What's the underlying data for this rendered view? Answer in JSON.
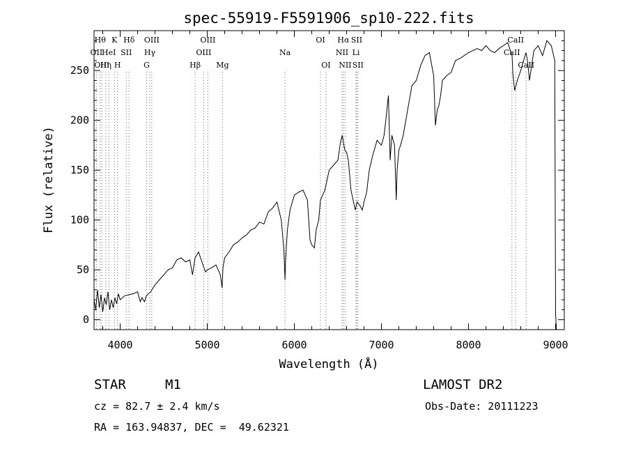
{
  "chart_data": {
    "type": "line",
    "title": "spec-55919-F5591906_sp10-222.fits",
    "xlabel": "Wavelength (Å)",
    "ylabel": "Flux (relative)",
    "xlim": [
      3700,
      9100
    ],
    "ylim": [
      -10,
      290
    ],
    "xticks": [
      4000,
      5000,
      6000,
      7000,
      8000,
      9000
    ],
    "yticks": [
      0,
      50,
      100,
      150,
      200,
      250
    ],
    "series": [
      {
        "x": [
          3700,
          3720,
          3740,
          3760,
          3780,
          3800,
          3820,
          3840,
          3860,
          3880,
          3900,
          3920,
          3940,
          3960,
          3980,
          4000,
          4050,
          4100,
          4150,
          4200,
          4230,
          4250,
          4280,
          4300,
          4350,
          4400,
          4450,
          4500,
          4550,
          4600,
          4650,
          4700,
          4750,
          4800,
          4830,
          4860,
          4900,
          4950,
          4980,
          5000,
          5050,
          5100,
          5150,
          5170,
          5180,
          5200,
          5250,
          5300,
          5350,
          5400,
          5450,
          5500,
          5550,
          5600,
          5650,
          5700,
          5750,
          5800,
          5850,
          5880,
          5893,
          5900,
          5920,
          5950,
          6000,
          6050,
          6100,
          6150,
          6180,
          6200,
          6230,
          6250,
          6280,
          6300,
          6350,
          6400,
          6450,
          6500,
          6530,
          6550,
          6563,
          6580,
          6600,
          6620,
          6650,
          6680,
          6700,
          6720,
          6750,
          6780,
          6800,
          6830,
          6860,
          6900,
          6950,
          7000,
          7030,
          7050,
          7080,
          7100,
          7120,
          7150,
          7170,
          7180,
          7200,
          7220,
          7250,
          7300,
          7350,
          7400,
          7450,
          7500,
          7550,
          7600,
          7620,
          7640,
          7660,
          7680,
          7700,
          7750,
          7800,
          7850,
          7900,
          7950,
          8000,
          8050,
          8100,
          8150,
          8200,
          8250,
          8300,
          8350,
          8400,
          8450,
          8500,
          8510,
          8530,
          8560,
          8600,
          8640,
          8660,
          8680,
          8700,
          8750,
          8800,
          8850,
          8900,
          8950,
          8990,
          9000,
          9010
        ],
        "y": [
          20,
          10,
          30,
          12,
          25,
          8,
          22,
          15,
          28,
          10,
          20,
          12,
          22,
          16,
          26,
          20,
          24,
          25,
          26,
          28,
          18,
          22,
          18,
          24,
          28,
          35,
          40,
          45,
          50,
          52,
          60,
          62,
          58,
          60,
          45,
          62,
          68,
          55,
          48,
          50,
          52,
          55,
          45,
          32,
          52,
          62,
          68,
          75,
          78,
          82,
          85,
          90,
          92,
          98,
          96,
          108,
          112,
          118,
          100,
          70,
          40,
          60,
          90,
          110,
          125,
          128,
          130,
          120,
          80,
          75,
          72,
          90,
          100,
          120,
          130,
          150,
          155,
          160,
          178,
          185,
          178,
          170,
          168,
          160,
          130,
          118,
          110,
          118,
          115,
          110,
          118,
          128,
          150,
          165,
          180,
          175,
          185,
          200,
          225,
          160,
          185,
          175,
          120,
          150,
          170,
          175,
          185,
          210,
          235,
          240,
          255,
          265,
          268,
          245,
          195,
          210,
          215,
          225,
          240,
          245,
          248,
          260,
          262,
          265,
          268,
          270,
          272,
          270,
          275,
          270,
          268,
          272,
          275,
          278,
          265,
          245,
          230,
          240,
          250,
          262,
          268,
          258,
          240,
          270,
          275,
          265,
          280,
          275,
          260,
          5,
          -10
        ]
      }
    ],
    "line_markers": [
      {
        "x": 3727,
        "label": "OII",
        "row": 2
      },
      {
        "x": 3770,
        "label": "Hθ",
        "row": 1
      },
      {
        "x": 3790,
        "label": "OIII",
        "row": 3
      },
      {
        "x": 3835,
        "label": "Hη",
        "row": 3
      },
      {
        "x": 3870,
        "label": "HeI",
        "row": 2
      },
      {
        "x": 3934,
        "label": "K",
        "row": 1
      },
      {
        "x": 3969,
        "label": "H",
        "row": 3
      },
      {
        "x": 4070,
        "label": "SII",
        "row": 2
      },
      {
        "x": 4102,
        "label": "Hδ",
        "row": 1
      },
      {
        "x": 4304,
        "label": "G",
        "row": 3
      },
      {
        "x": 4340,
        "label": "Hγ",
        "row": 2
      },
      {
        "x": 4363,
        "label": "OIII",
        "row": 1
      },
      {
        "x": 4861,
        "label": "Hβ",
        "row": 3
      },
      {
        "x": 4959,
        "label": "OIII",
        "row": 2
      },
      {
        "x": 5007,
        "label": "OIII",
        "row": 1
      },
      {
        "x": 5175,
        "label": "Mg",
        "row": 3
      },
      {
        "x": 5893,
        "label": "Na",
        "row": 2
      },
      {
        "x": 6300,
        "label": "OI",
        "row": 1
      },
      {
        "x": 6363,
        "label": "OI",
        "row": 3
      },
      {
        "x": 6548,
        "label": "NII",
        "row": 2
      },
      {
        "x": 6563,
        "label": "Hα",
        "row": 1
      },
      {
        "x": 6583,
        "label": "NII",
        "row": 3
      },
      {
        "x": 6716,
        "label": "SII",
        "row": 1
      },
      {
        "x": 6708,
        "label": "Li",
        "row": 2
      },
      {
        "x": 6731,
        "label": "SII",
        "row": 3
      },
      {
        "x": 8498,
        "label": "CaII",
        "row": 2
      },
      {
        "x": 8542,
        "label": "CaII",
        "row": 1
      },
      {
        "x": 8662,
        "label": "CaII",
        "row": 3
      }
    ],
    "line_color": "#000000",
    "marker_color": "#e0302a"
  },
  "info": {
    "object_class": "STAR",
    "subclass": "M1",
    "survey": "LAMOST DR2",
    "redshift": "cz = 82.7 ± 2.4 km/s",
    "obs_date": "Obs-Date: 20111223",
    "coords": "RA = 163.94837, DEC =  49.62321"
  }
}
